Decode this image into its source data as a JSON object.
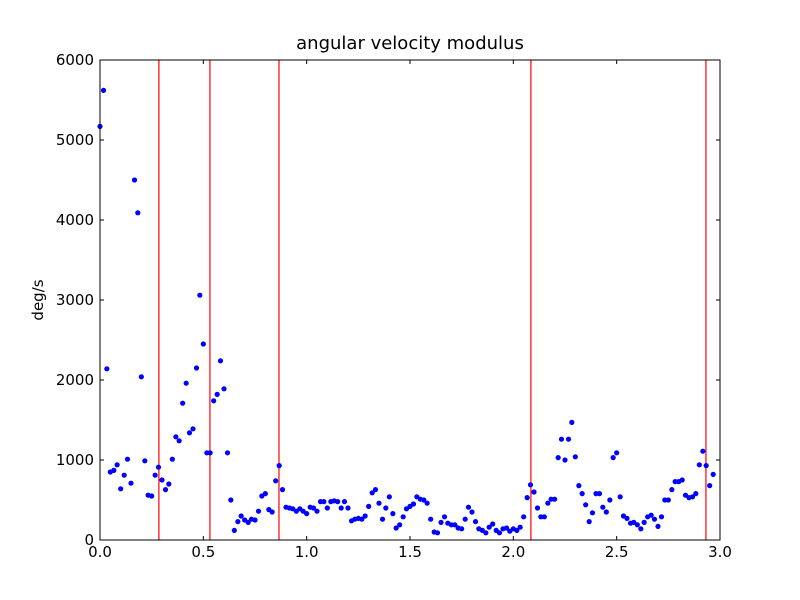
{
  "chart_data": {
    "type": "scatter",
    "title": "angular velocity modulus",
    "ylabel": "deg/s",
    "xlim": [
      0,
      3
    ],
    "ylim": [
      0,
      6000
    ],
    "xticks": [
      {
        "value": 0,
        "label": "0.0"
      },
      {
        "value": 0.5,
        "label": "0.5"
      },
      {
        "value": 1,
        "label": "1.0"
      },
      {
        "value": 1.5,
        "label": "1.5"
      },
      {
        "value": 2,
        "label": "2.0"
      },
      {
        "value": 2.5,
        "label": "2.5"
      },
      {
        "value": 3,
        "label": "3.0"
      }
    ],
    "yticks": [
      0,
      1000,
      2000,
      3000,
      4000,
      5000,
      6000
    ],
    "grid": false,
    "color": "#0000ff",
    "x": [
      0,
      0.017,
      0.033,
      0.05,
      0.067,
      0.083,
      0.1,
      0.117,
      0.133,
      0.15,
      0.167,
      0.183,
      0.2,
      0.217,
      0.233,
      0.25,
      0.267,
      0.283,
      0.3,
      0.317,
      0.333,
      0.35,
      0.367,
      0.383,
      0.4,
      0.417,
      0.433,
      0.45,
      0.467,
      0.483,
      0.5,
      0.517,
      0.533,
      0.55,
      0.567,
      0.583,
      0.6,
      0.617,
      0.633,
      0.65,
      0.667,
      0.683,
      0.7,
      0.717,
      0.733,
      0.75,
      0.767,
      0.783,
      0.8,
      0.817,
      0.833,
      0.85,
      0.867,
      0.883,
      0.9,
      0.917,
      0.933,
      0.95,
      0.967,
      0.983,
      1,
      1.017,
      1.033,
      1.05,
      1.067,
      1.083,
      1.1,
      1.117,
      1.133,
      1.15,
      1.167,
      1.183,
      1.2,
      1.217,
      1.233,
      1.25,
      1.267,
      1.283,
      1.3,
      1.317,
      1.333,
      1.35,
      1.367,
      1.383,
      1.4,
      1.417,
      1.433,
      1.45,
      1.467,
      1.483,
      1.5,
      1.517,
      1.533,
      1.55,
      1.567,
      1.583,
      1.6,
      1.617,
      1.633,
      1.65,
      1.667,
      1.683,
      1.7,
      1.717,
      1.733,
      1.75,
      1.767,
      1.783,
      1.8,
      1.817,
      1.833,
      1.85,
      1.867,
      1.883,
      1.9,
      1.917,
      1.933,
      1.95,
      1.967,
      1.983,
      2,
      2.017,
      2.033,
      2.05,
      2.067,
      2.083,
      2.1,
      2.117,
      2.133,
      2.15,
      2.167,
      2.183,
      2.2,
      2.217,
      2.233,
      2.25,
      2.267,
      2.283,
      2.3,
      2.317,
      2.333,
      2.35,
      2.367,
      2.383,
      2.4,
      2.417,
      2.433,
      2.45,
      2.467,
      2.483,
      2.5,
      2.517,
      2.533,
      2.55,
      2.567,
      2.583,
      2.6,
      2.617,
      2.633,
      2.65,
      2.667,
      2.683,
      2.7,
      2.717,
      2.733,
      2.75,
      2.767,
      2.783,
      2.8,
      2.817,
      2.833,
      2.85,
      2.867,
      2.883,
      2.9,
      2.917,
      2.933,
      2.95,
      2.967
    ],
    "values": [
      5170,
      5620,
      2140,
      850,
      870,
      940,
      640,
      810,
      1010,
      710,
      4500,
      4090,
      2040,
      990,
      560,
      550,
      810,
      910,
      750,
      630,
      700,
      1010,
      1290,
      1240,
      1710,
      1960,
      1340,
      1390,
      2150,
      3060,
      2450,
      1090,
      1090,
      1740,
      1820,
      2240,
      1890,
      1090,
      500,
      120,
      230,
      300,
      250,
      220,
      260,
      250,
      360,
      550,
      580,
      380,
      350,
      740,
      930,
      630,
      410,
      400,
      390,
      360,
      390,
      360,
      330,
      410,
      400,
      360,
      480,
      480,
      400,
      480,
      490,
      480,
      400,
      480,
      400,
      240,
      260,
      270,
      260,
      300,
      420,
      590,
      630,
      460,
      260,
      400,
      540,
      330,
      150,
      190,
      290,
      390,
      420,
      450,
      540,
      510,
      500,
      460,
      260,
      100,
      90,
      220,
      290,
      210,
      190,
      190,
      150,
      140,
      260,
      410,
      350,
      230,
      140,
      120,
      90,
      160,
      200,
      120,
      90,
      140,
      150,
      110,
      140,
      120,
      160,
      290,
      530,
      690,
      600,
      400,
      290,
      290,
      460,
      510,
      510,
      1030,
      1260,
      1000,
      1260,
      1470,
      1040,
      680,
      580,
      440,
      230,
      340,
      580,
      580,
      410,
      350,
      500,
      1030,
      1090,
      540,
      300,
      270,
      210,
      220,
      190,
      140,
      220,
      290,
      310,
      260,
      170,
      290,
      500,
      500,
      630,
      730,
      730,
      750,
      560,
      530,
      540,
      580,
      940,
      1110,
      930,
      680,
      820
    ],
    "vlines": {
      "color": "#ff0000",
      "x": [
        0.285,
        0.532,
        0.866,
        2.085,
        2.932
      ]
    }
  }
}
